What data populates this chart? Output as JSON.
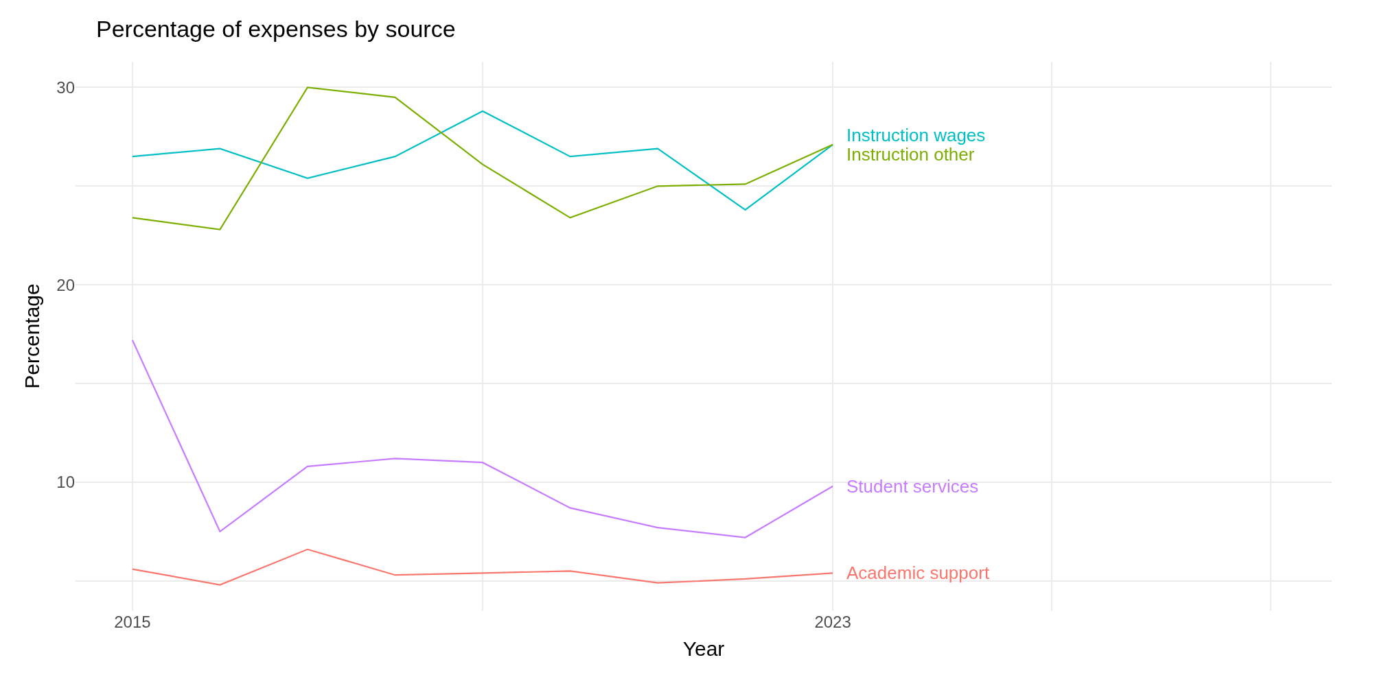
{
  "chart_data": {
    "type": "line",
    "title": "Percentage of expenses by source",
    "xlabel": "Year",
    "ylabel": "Percentage",
    "x": [
      2015,
      2016,
      2017,
      2018,
      2019,
      2020,
      2021,
      2022,
      2023
    ],
    "series": [
      {
        "name": "Instruction wages",
        "color": "#00bfc4",
        "values": [
          26.5,
          26.9,
          25.4,
          26.5,
          28.8,
          26.5,
          26.9,
          23.8,
          27.1
        ]
      },
      {
        "name": "Instruction other",
        "color": "#7cae00",
        "values": [
          23.4,
          22.8,
          30.0,
          29.5,
          26.1,
          23.4,
          25.0,
          25.1,
          27.1
        ]
      },
      {
        "name": "Student services",
        "color": "#c77cff",
        "values": [
          17.2,
          7.5,
          10.8,
          11.2,
          11.0,
          8.7,
          7.7,
          7.2,
          9.8
        ]
      },
      {
        "name": "Academic support",
        "color": "#f8766d",
        "values": [
          5.6,
          4.8,
          6.6,
          5.3,
          5.4,
          5.5,
          4.9,
          5.1,
          5.4
        ]
      }
    ],
    "xlim": [
      2014.35,
      2028.7
    ],
    "xticks": [
      2015,
      {
        "value": 2019,
        "label": null
      },
      2023,
      {
        "value": 2025.5,
        "label": null
      },
      {
        "value": 2028,
        "label": null
      }
    ],
    "ylim": [
      3.5,
      31.3
    ],
    "yticks": [
      10,
      20,
      30,
      {
        "value": 5,
        "label": null
      },
      {
        "value": 15,
        "label": null
      },
      {
        "value": 25,
        "label": null
      }
    ],
    "grid": true,
    "legend": false,
    "marker": "none",
    "line_style": "solid"
  }
}
